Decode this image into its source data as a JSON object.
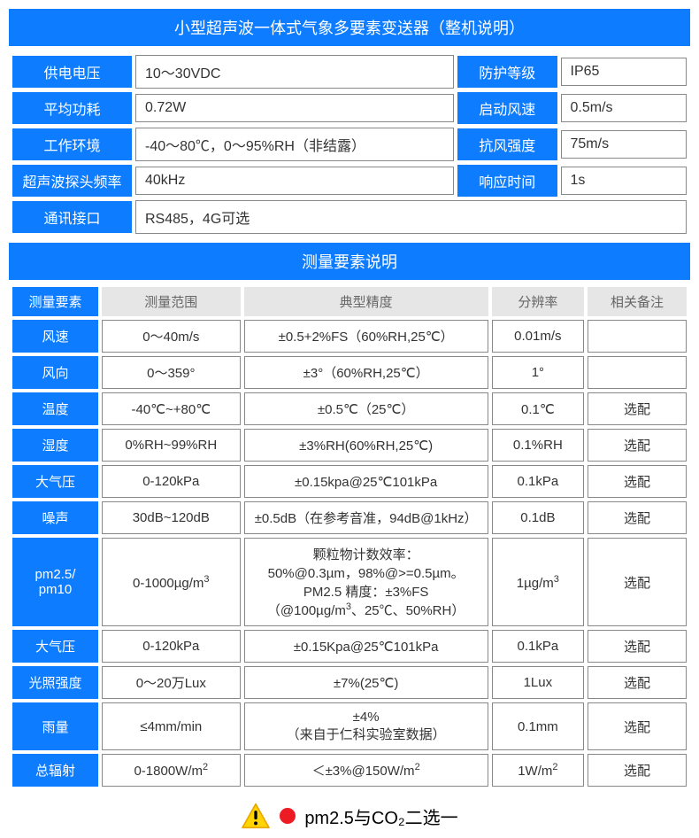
{
  "colors": {
    "primary": "#0d7cff",
    "white": "#ffffff",
    "border": "#888888",
    "header_bg": "#e6e6e6",
    "header_text": "#666666",
    "text": "#333333",
    "warn_fill": "#ffd400",
    "warn_stroke": "#e8a800",
    "red": "#ed1c24"
  },
  "main_title": "小型超声波一体式气象多要素变送器（整机说明）",
  "spec": {
    "c1": {
      "r1_label": "供电电压",
      "r1_value": "10～30VDC",
      "r2_label": "平均功耗",
      "r2_value": "0.72W",
      "r3_label": "工作环境",
      "r3_value": "-40～80℃，0～95%RH（非结露）",
      "r4_label": "超声波探头频率",
      "r4_value": "40kHz",
      "r5_label": "通讯接口",
      "r5_value": "RS485，4G可选"
    },
    "c2": {
      "r1_label": "防护等级",
      "r1_value": "IP65",
      "r2_label": "启动风速",
      "r2_value": "0.5m/s",
      "r3_label": "抗风强度",
      "r3_value": "75m/s",
      "r4_label": "响应时间",
      "r4_value": "1s"
    }
  },
  "section2_title": "测量要素说明",
  "headers": {
    "element": "测量要素",
    "range": "测量范围",
    "accuracy": "典型精度",
    "resolution": "分辨率",
    "remark": "相关备注"
  },
  "rows": [
    {
      "element": "风速",
      "range": "0～40m/s",
      "accuracy": "±0.5+2%FS（60%RH,25℃）",
      "resolution": "0.01m/s",
      "remark": ""
    },
    {
      "element": "风向",
      "range": "0～359°",
      "accuracy": "±3°（60%RH,25℃）",
      "resolution": "1°",
      "remark": ""
    },
    {
      "element": "温度",
      "range": "-40℃~+80℃",
      "accuracy": "±0.5℃（25℃）",
      "resolution": "0.1℃",
      "remark": "选配"
    },
    {
      "element": "湿度",
      "range": "0%RH~99%RH",
      "accuracy": "±3%RH(60%RH,25℃)",
      "resolution": "0.1%RH",
      "remark": "选配"
    },
    {
      "element": "大气压",
      "range": "0-120kPa",
      "accuracy": "±0.15kpa@25℃101kPa",
      "resolution": "0.1kPa",
      "remark": "选配"
    },
    {
      "element": "噪声",
      "range": "30dB~120dB",
      "accuracy": "±0.5dB（在参考音准，94dB@1kHz）",
      "resolution": "0.1dB",
      "remark": "选配"
    },
    {
      "element": "pm2.5/\npm10",
      "range": "0-1000µg/m³",
      "accuracy": "颗粒物计数效率：\n50%@0.3µm，98%@>=0.5µm。\nPM2.5 精度：±3%FS\n（@100µg/m³、25℃、50%RH）",
      "resolution": "1µg/m³",
      "remark": "选配"
    },
    {
      "element": "大气压",
      "range": "0-120kPa",
      "accuracy": "±0.15Kpa@25℃101kPa",
      "resolution": "0.1kPa",
      "remark": "选配"
    },
    {
      "element": "光照强度",
      "range": "0～20万Lux",
      "accuracy": "±7%(25℃)",
      "resolution": "1Lux",
      "remark": "选配"
    },
    {
      "element": "雨量",
      "range": "≤4mm/min",
      "accuracy": "±4%\n（来自于仁科实验室数据）",
      "resolution": "0.1mm",
      "remark": "选配"
    },
    {
      "element": "总辐射",
      "range": "0-1800W/m²",
      "accuracy": "＜±3%@150W/m²",
      "resolution": "1W/m²",
      "remark": "选配"
    }
  ],
  "footnote": "pm2.5与CO₂二选一",
  "col_widths": {
    "element": "13%",
    "range": "21%",
    "accuracy": "37%",
    "resolution": "14%",
    "remark": "15%"
  },
  "spec_widths": {
    "label": "18%",
    "value_a": "48%",
    "label_b": "15%",
    "value_b": "19%"
  }
}
